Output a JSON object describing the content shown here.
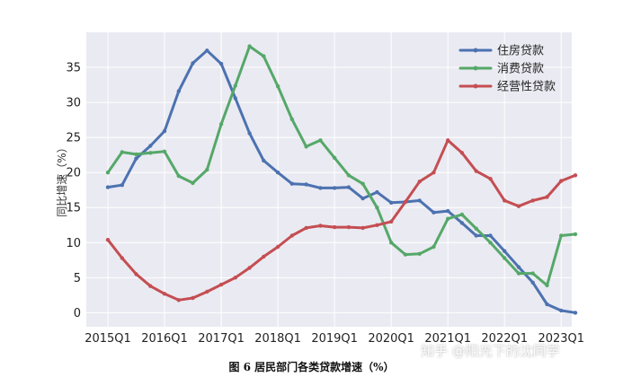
{
  "chart_data": {
    "type": "line",
    "title": "",
    "xlabel": "",
    "ylabel": "同比增速（%）",
    "x": [
      "2015Q1",
      "2015Q2",
      "2015Q3",
      "2015Q4",
      "2016Q1",
      "2016Q2",
      "2016Q3",
      "2016Q4",
      "2017Q1",
      "2017Q2",
      "2017Q3",
      "2017Q4",
      "2018Q1",
      "2018Q2",
      "2018Q3",
      "2018Q4",
      "2019Q1",
      "2019Q2",
      "2019Q3",
      "2019Q4",
      "2020Q1",
      "2020Q2",
      "2020Q3",
      "2020Q4",
      "2021Q1",
      "2021Q2",
      "2021Q3",
      "2021Q4",
      "2022Q1",
      "2022Q2",
      "2022Q3",
      "2022Q4",
      "2023Q1",
      "2023Q2"
    ],
    "xticks": [
      "2015Q1",
      "2016Q1",
      "2017Q1",
      "2018Q1",
      "2019Q1",
      "2020Q1",
      "2021Q1",
      "2022Q1",
      "2023Q1"
    ],
    "ylim": [
      -2,
      40
    ],
    "yticks": [
      0,
      5,
      10,
      15,
      20,
      25,
      30,
      35
    ],
    "grid": true,
    "legend_position": "top-right",
    "series": [
      {
        "name": "住房贷款",
        "color": "#4c72b0",
        "values": [
          17.9,
          18.2,
          22.0,
          23.8,
          25.9,
          31.6,
          35.6,
          37.4,
          35.5,
          30.6,
          25.6,
          21.7,
          20.0,
          18.4,
          18.3,
          17.8,
          17.8,
          17.9,
          16.3,
          17.2,
          15.7,
          15.8,
          16.0,
          14.3,
          14.5,
          12.8,
          11.0,
          11.0,
          8.8,
          6.5,
          4.3,
          1.2,
          0.3,
          0.0
        ]
      },
      {
        "name": "消费贷款",
        "color": "#55a868",
        "values": [
          20.0,
          22.9,
          22.6,
          22.8,
          23.0,
          19.5,
          18.5,
          20.4,
          26.9,
          32.4,
          38.0,
          36.6,
          32.3,
          27.6,
          23.7,
          24.6,
          22.1,
          19.6,
          18.4,
          15.0,
          10.0,
          8.3,
          8.4,
          9.4,
          13.4,
          14.0,
          12.0,
          10.0,
          7.8,
          5.6,
          5.6,
          3.9,
          11.0,
          11.2
        ]
      },
      {
        "name": "经营性贷款",
        "color": "#c44e52",
        "values": [
          10.4,
          7.8,
          5.5,
          3.8,
          2.7,
          1.8,
          2.1,
          3.0,
          4.0,
          5.0,
          6.4,
          8.0,
          9.4,
          11.0,
          12.1,
          12.4,
          12.2,
          12.2,
          12.1,
          12.5,
          13.0,
          15.8,
          18.7,
          20.0,
          24.6,
          22.8,
          20.2,
          19.1,
          16.0,
          15.2,
          16.0,
          16.5,
          18.8,
          19.6
        ]
      }
    ]
  },
  "caption": "图 6   居民部门各类贷款增速（%）",
  "watermark": "知乎 @阳光下的沈同学"
}
